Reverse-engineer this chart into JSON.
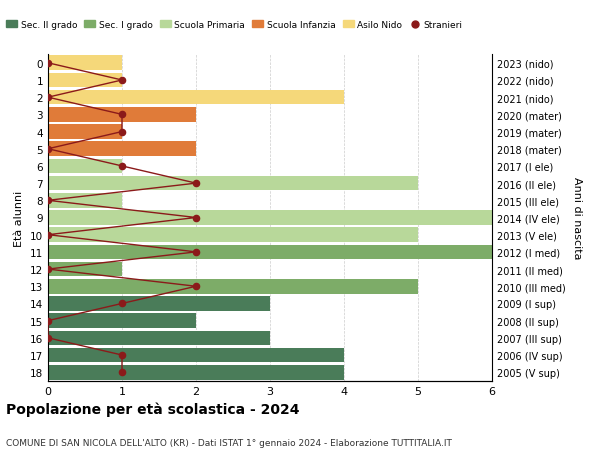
{
  "ages": [
    18,
    17,
    16,
    15,
    14,
    13,
    12,
    11,
    10,
    9,
    8,
    7,
    6,
    5,
    4,
    3,
    2,
    1,
    0
  ],
  "years": [
    "2005 (V sup)",
    "2006 (IV sup)",
    "2007 (III sup)",
    "2008 (II sup)",
    "2009 (I sup)",
    "2010 (III med)",
    "2011 (II med)",
    "2012 (I med)",
    "2013 (V ele)",
    "2014 (IV ele)",
    "2015 (III ele)",
    "2016 (II ele)",
    "2017 (I ele)",
    "2018 (mater)",
    "2019 (mater)",
    "2020 (mater)",
    "2021 (nido)",
    "2022 (nido)",
    "2023 (nido)"
  ],
  "bar_values": [
    4,
    4,
    3,
    2,
    3,
    5,
    1,
    6,
    5,
    6,
    1,
    5,
    1,
    2,
    1,
    2,
    4,
    1,
    1
  ],
  "bar_colors": [
    "#4a7c59",
    "#4a7c59",
    "#4a7c59",
    "#4a7c59",
    "#4a7c59",
    "#7dac68",
    "#7dac68",
    "#7dac68",
    "#b8d89a",
    "#b8d89a",
    "#b8d89a",
    "#b8d89a",
    "#b8d89a",
    "#e07b39",
    "#e07b39",
    "#e07b39",
    "#f5d87a",
    "#f5d87a",
    "#f5d87a"
  ],
  "stranieri_values": [
    1,
    1,
    0,
    0,
    1,
    2,
    0,
    2,
    0,
    2,
    0,
    2,
    1,
    0,
    1,
    1,
    0,
    1,
    0
  ],
  "stranieri_color": "#8b1a1a",
  "legend_labels": [
    "Sec. II grado",
    "Sec. I grado",
    "Scuola Primaria",
    "Scuola Infanzia",
    "Asilo Nido",
    "Stranieri"
  ],
  "legend_colors": [
    "#4a7c59",
    "#7dac68",
    "#b8d89a",
    "#e07b39",
    "#f5d87a",
    "#8b1a1a"
  ],
  "ylabel": "Età alunni",
  "ylabel2": "Anni di nascita",
  "title": "Popolazione per età scolastica - 2024",
  "subtitle": "COMUNE DI SAN NICOLA DELL'ALTO (KR) - Dati ISTAT 1° gennaio 2024 - Elaborazione TUTTITALIA.IT",
  "xlim": [
    0,
    6
  ],
  "background_color": "#ffffff",
  "grid_color": "#cccccc"
}
